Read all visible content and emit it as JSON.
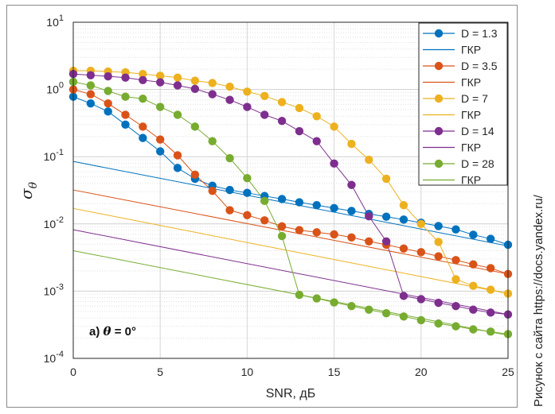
{
  "chart_data": {
    "type": "line",
    "xlabel": "SNR, дБ",
    "ylabel": "σ",
    "ylabel_sub": "θ",
    "xlim": [
      0,
      25
    ],
    "ylim_exp": [
      -4,
      1
    ],
    "y_scale": "log",
    "grid": true,
    "legend_position": "top-right",
    "x_ticks": [
      "0",
      "5",
      "10",
      "15",
      "20",
      "25"
    ],
    "y_ticks": [
      {
        "base": "10",
        "exp": "-4"
      },
      {
        "base": "10",
        "exp": "-3"
      },
      {
        "base": "10",
        "exp": "-2"
      },
      {
        "base": "10",
        "exp": "-1"
      },
      {
        "base": "10",
        "exp": "0"
      },
      {
        "base": "10",
        "exp": "1"
      }
    ],
    "annotation": {
      "prefix": "а)",
      "symbol": "θ",
      "rest": " = 0°"
    },
    "x": [
      0,
      1,
      2,
      3,
      4,
      5,
      6,
      7,
      8,
      9,
      10,
      11,
      12,
      13,
      14,
      15,
      16,
      17,
      18,
      19,
      20,
      21,
      22,
      23,
      24,
      25
    ],
    "series": [
      {
        "name": "D = 1.3",
        "kind": "sim",
        "color": "#0072BD",
        "values": [
          0.78,
          0.62,
          0.47,
          0.3,
          0.19,
          0.12,
          0.068,
          0.047,
          0.037,
          0.032,
          0.029,
          0.026,
          0.0235,
          0.021,
          0.019,
          0.0172,
          0.0156,
          0.0141,
          0.0128,
          0.0116,
          0.0104,
          0.0093,
          0.0083,
          0.0069,
          0.006,
          0.0049
        ]
      },
      {
        "name": "ГКР",
        "kind": "crb",
        "color": "#0072BD",
        "y0": 0.085,
        "y1": 0.0047
      },
      {
        "name": "D = 3.5",
        "kind": "sim",
        "color": "#D95319",
        "values": [
          1.0,
          0.85,
          0.62,
          0.42,
          0.28,
          0.18,
          0.105,
          0.054,
          0.031,
          0.016,
          0.0135,
          0.0113,
          0.0092,
          0.0081,
          0.0075,
          0.007,
          0.0063,
          0.0055,
          0.0049,
          0.0043,
          0.0038,
          0.0033,
          0.0029,
          0.0025,
          0.0022,
          0.0018
        ]
      },
      {
        "name": "ГКР",
        "kind": "crb",
        "color": "#D95319",
        "y0": 0.032,
        "y1": 0.0018
      },
      {
        "name": "D = 7",
        "kind": "sim",
        "color": "#EDB120",
        "values": [
          1.9,
          1.9,
          1.85,
          1.8,
          1.7,
          1.6,
          1.5,
          1.35,
          1.25,
          1.1,
          0.93,
          0.8,
          0.65,
          0.53,
          0.4,
          0.28,
          0.155,
          0.09,
          0.047,
          0.019,
          0.01,
          0.0054,
          0.0015,
          0.0012,
          0.00105,
          0.00092
        ]
      },
      {
        "name": "ГКР",
        "kind": "crb",
        "color": "#EDB120",
        "y0": 0.017,
        "y1": 0.00092
      },
      {
        "name": "D = 14",
        "kind": "sim",
        "color": "#7E2F8E",
        "values": [
          1.7,
          1.63,
          1.57,
          1.5,
          1.38,
          1.28,
          1.15,
          1.02,
          0.85,
          0.7,
          0.55,
          0.42,
          0.34,
          0.24,
          0.17,
          0.079,
          0.038,
          0.013,
          0.0055,
          0.00085,
          0.00076,
          0.00067,
          0.0006,
          0.00053,
          0.00048,
          0.00045
        ]
      },
      {
        "name": "ГКР",
        "kind": "crb",
        "color": "#7E2F8E",
        "y0": 0.0082,
        "y1": 0.00045
      },
      {
        "name": "D = 28",
        "kind": "sim",
        "color": "#77AC30",
        "values": [
          1.3,
          1.15,
          0.95,
          0.78,
          0.73,
          0.55,
          0.42,
          0.28,
          0.17,
          0.095,
          0.048,
          0.022,
          0.0066,
          0.00088,
          0.00078,
          0.00068,
          0.0006,
          0.00053,
          0.00047,
          0.00042,
          0.00037,
          0.00033,
          0.0003,
          0.00027,
          0.00025,
          0.00023
        ]
      },
      {
        "name": "ГКР",
        "kind": "crb",
        "color": "#77AC30",
        "y0": 0.004,
        "y1": 0.00022
      }
    ]
  },
  "side_caption": "Рисунок с сайта https://docs.yandex.ru/"
}
